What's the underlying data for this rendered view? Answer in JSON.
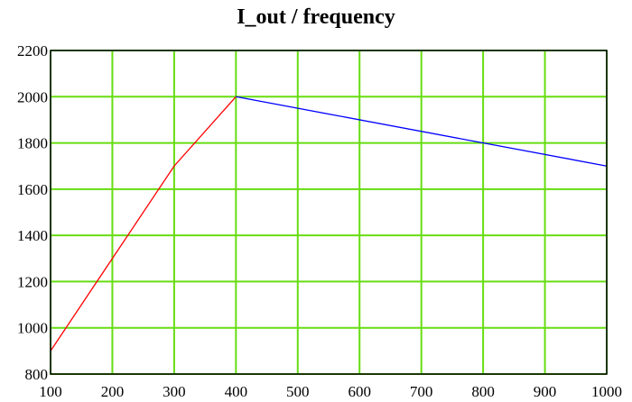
{
  "chart_data": {
    "type": "line",
    "title": "I_out / frequency",
    "xlabel": "",
    "ylabel": "",
    "xlim": [
      100,
      1000
    ],
    "ylim": [
      800,
      2200
    ],
    "x_ticks": [
      100,
      200,
      300,
      400,
      500,
      600,
      700,
      800,
      900,
      1000
    ],
    "y_ticks": [
      800,
      1000,
      1200,
      1400,
      1600,
      1800,
      2000,
      2200
    ],
    "grid": true,
    "series": [
      {
        "color": "#ff0000",
        "x": [
          100,
          300,
          400
        ],
        "y": [
          900,
          1700,
          2000
        ]
      },
      {
        "color": "#0000ff",
        "x": [
          400,
          1000
        ],
        "y": [
          2000,
          1700
        ]
      }
    ],
    "grid_color": "#66dd11"
  }
}
